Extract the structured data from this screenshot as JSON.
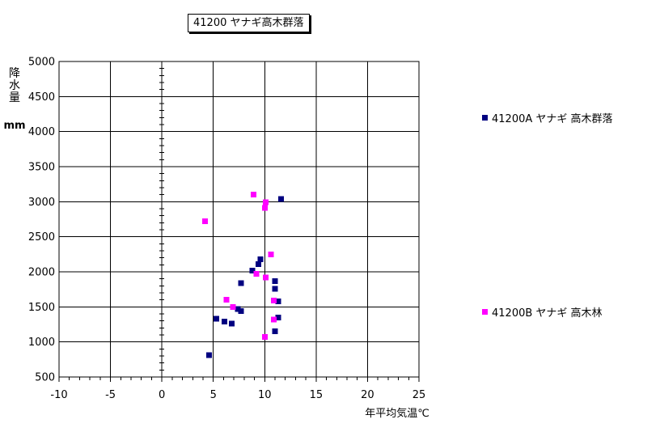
{
  "title": "41200 ヤナギ高木群落",
  "axes": {
    "x_label": "年平均気温℃",
    "y_label_chars": [
      "降",
      "水",
      "量"
    ],
    "y_unit": "mm"
  },
  "colors": {
    "series_a": "#000080",
    "series_b": "#FF00FF",
    "grid": "#000000",
    "background": "#FFFFFF"
  },
  "chart_data": {
    "type": "scatter",
    "title": "41200 ヤナギ高木群落",
    "xlabel": "年平均気温℃",
    "ylabel": "降水量 mm",
    "xlim": [
      -10,
      25
    ],
    "ylim": [
      500,
      5000
    ],
    "x_tick_step": 5,
    "y_tick_step": 500,
    "x_minor_tick_step": 1,
    "y_minor_tick_step": 100,
    "grid": true,
    "value_axis_cross_x": 0,
    "legend_position": "right",
    "series": [
      {
        "name": "41200A ヤナギ 高木群落",
        "color": "#000080",
        "marker": "square",
        "points": [
          [
            11.6,
            3040
          ],
          [
            9.6,
            2180
          ],
          [
            9.4,
            2110
          ],
          [
            8.8,
            2020
          ],
          [
            11.0,
            1870
          ],
          [
            7.7,
            1840
          ],
          [
            11.0,
            1760
          ],
          [
            11.3,
            1580
          ],
          [
            7.4,
            1470
          ],
          [
            7.7,
            1440
          ],
          [
            11.3,
            1350
          ],
          [
            5.3,
            1330
          ],
          [
            6.1,
            1290
          ],
          [
            6.8,
            1260
          ],
          [
            11.0,
            1150
          ],
          [
            4.6,
            810
          ]
        ]
      },
      {
        "name": "41200B ヤナギ 高木林",
        "color": "#FF00FF",
        "marker": "square",
        "points": [
          [
            8.9,
            3100
          ],
          [
            10.1,
            2990
          ],
          [
            10.0,
            2910
          ],
          [
            4.2,
            2720
          ],
          [
            10.6,
            2250
          ],
          [
            9.2,
            1970
          ],
          [
            10.1,
            1920
          ],
          [
            6.3,
            1600
          ],
          [
            10.9,
            1590
          ],
          [
            6.9,
            1500
          ],
          [
            10.9,
            1320
          ],
          [
            10.0,
            1070
          ]
        ]
      }
    ]
  }
}
